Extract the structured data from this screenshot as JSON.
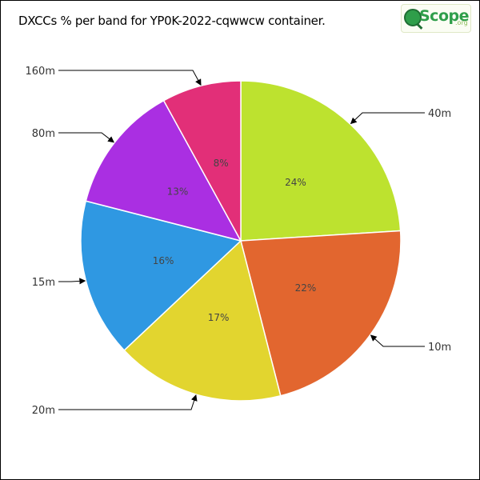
{
  "title": "DXCCs % per band for YP0K-2022-cqwwcw container.",
  "logo": {
    "text": "Scope",
    "suffix": ".org"
  },
  "chart_data": {
    "type": "pie",
    "title": "DXCCs % per band for YP0K-2022-cqwwcw container.",
    "slices": [
      {
        "label": "40m",
        "value": 24,
        "display": "24%",
        "color": "#bde22f"
      },
      {
        "label": "10m",
        "value": 22,
        "display": "22%",
        "color": "#e2662f"
      },
      {
        "label": "20m",
        "value": 17,
        "display": "17%",
        "color": "#e2d52f"
      },
      {
        "label": "15m",
        "value": 16,
        "display": "16%",
        "color": "#2f98e2"
      },
      {
        "label": "80m",
        "value": 13,
        "display": "13%",
        "color": "#aa2fe2"
      },
      {
        "label": "160m",
        "value": 8,
        "display": "8%",
        "color": "#e22f78"
      }
    ],
    "start_angle": "12 o'clock",
    "direction": "clockwise",
    "legend": "none"
  }
}
